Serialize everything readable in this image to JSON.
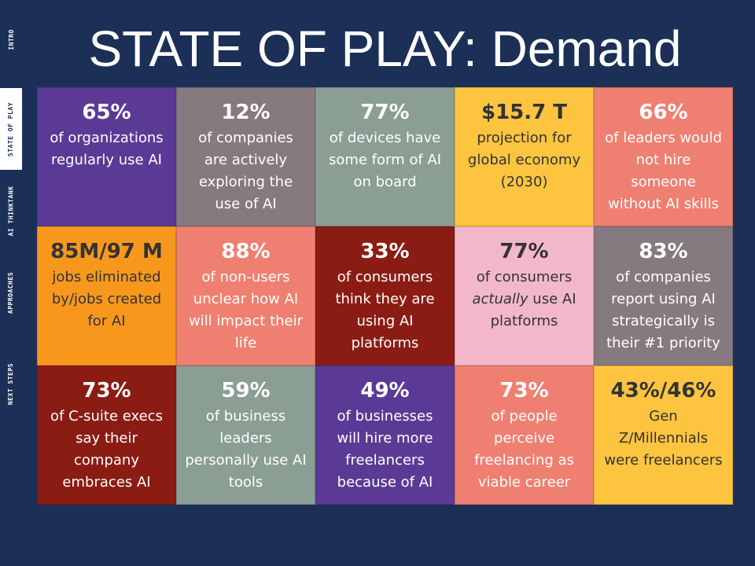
{
  "nav": [
    {
      "label": "INTRO",
      "active": false
    },
    {
      "label": "STATE OF PLAY",
      "active": true
    },
    {
      "label": "AI THINKTANK",
      "active": false
    },
    {
      "label": "APPROACHES",
      "active": false
    },
    {
      "label": "NEXT STEPS",
      "active": false
    }
  ],
  "title": "STATE OF PLAY: Demand",
  "grid": [
    [
      {
        "stat": "65%",
        "text": [
          "of organizations regularly use AI"
        ],
        "color": "#5b3a96",
        "ink": "#ffffff"
      },
      {
        "stat": "12%",
        "text": [
          "of companies are actively exploring the use of AI"
        ],
        "color": "#857a80",
        "ink": "#ffffff"
      },
      {
        "stat": "77%",
        "text": [
          "of devices have some form of AI on board"
        ],
        "color": "#8a9e93",
        "ink": "#ffffff"
      },
      {
        "stat": "$15.7 T",
        "text": [
          "projection for global economy (2030)"
        ],
        "color": "#fcc43f",
        "ink": "#333333"
      },
      {
        "stat": "66%",
        "text": [
          "of leaders would not hire someone without AI skills"
        ],
        "color": "#ef7f70",
        "ink": "#ffffff"
      }
    ],
    [
      {
        "stat": "85M/97 M",
        "text": [
          "jobs eliminated by/jobs created for AI"
        ],
        "color": "#f7981d",
        "ink": "#333333"
      },
      {
        "stat": "88%",
        "text": [
          "of non-users unclear how AI will impact their life"
        ],
        "color": "#ef7f70",
        "ink": "#ffffff"
      },
      {
        "stat": "33%",
        "text": [
          "of consumers think they are using AI platforms"
        ],
        "color": "#8b1c14",
        "ink": "#ffffff"
      },
      {
        "stat": "77%",
        "text": [
          "of consumers",
          {
            "text": "actually",
            "italic": true
          },
          "use AI platforms"
        ],
        "color": "#f2b8c9",
        "ink": "#333333"
      },
      {
        "stat": "83%",
        "text": [
          "of companies report using AI strategically is their #1 priority"
        ],
        "color": "#857a80",
        "ink": "#ffffff"
      }
    ],
    [
      {
        "stat": "73%",
        "text": [
          "of C-suite execs say their company embraces AI"
        ],
        "color": "#8b1c14",
        "ink": "#ffffff"
      },
      {
        "stat": "59%",
        "text": [
          "of business leaders personally use AI tools"
        ],
        "color": "#8a9e93",
        "ink": "#ffffff"
      },
      {
        "stat": "49%",
        "text": [
          "of businesses will hire more freelancers because of AI"
        ],
        "color": "#5b3a96",
        "ink": "#ffffff"
      },
      {
        "stat": "73%",
        "text": [
          "of people perceive freelancing as viable career"
        ],
        "color": "#ef7f70",
        "ink": "#ffffff"
      },
      {
        "stat": "43%/46%",
        "text": [
          "Gen Z/Millennials were freelancers"
        ],
        "color": "#fcc43f",
        "ink": "#333333"
      }
    ]
  ]
}
